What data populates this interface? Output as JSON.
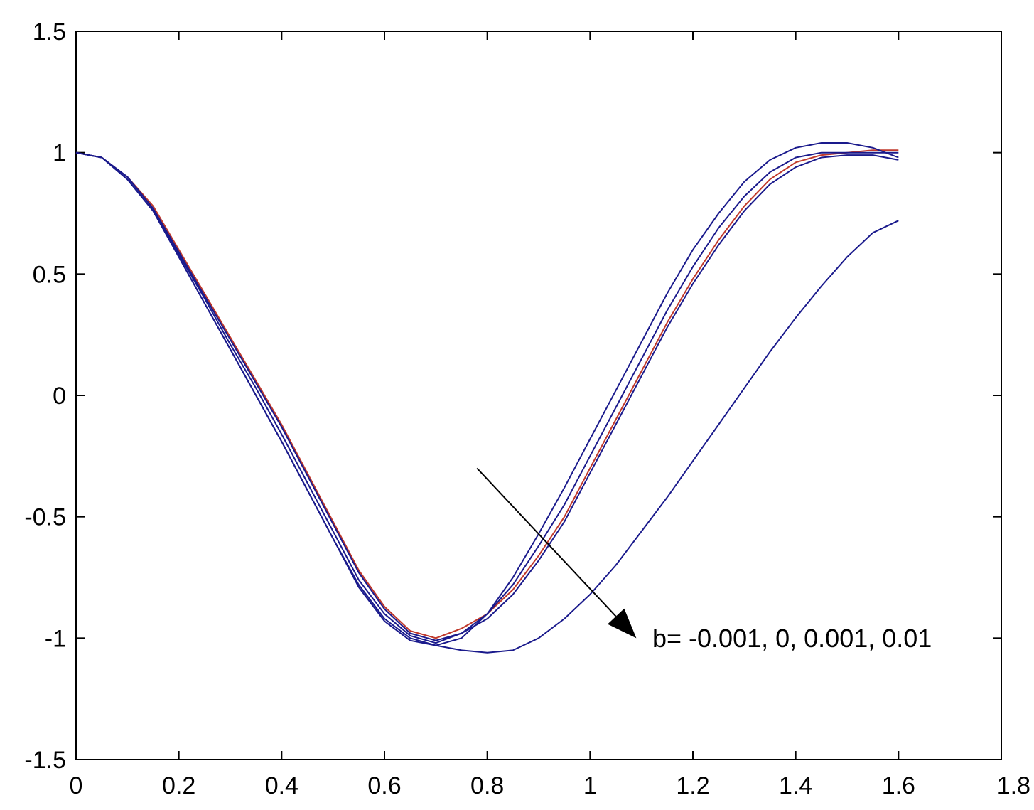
{
  "chart_data": {
    "type": "line",
    "title": "",
    "xlabel": "",
    "ylabel": "",
    "xlim": [
      0,
      1.8
    ],
    "ylim": [
      -1.5,
      1.5
    ],
    "x_ticks": [
      "0",
      "0.2",
      "0.4",
      "0.6",
      "0.8",
      "1",
      "1.2",
      "1.4",
      "1.6",
      "1.8"
    ],
    "y_ticks": [
      "1.5",
      "1",
      "0.5",
      "0",
      "-0.5",
      "-1",
      "-1.5"
    ],
    "grid": false,
    "legend": "none",
    "annotation": {
      "text": "b= -0.001, 0, 0.001, 0.01",
      "arrow_from": [
        0.78,
        -0.3
      ],
      "arrow_to": [
        1.09,
        -1.0
      ]
    },
    "series": [
      {
        "color": "#c0392b",
        "x": [
          0,
          0.05,
          0.1,
          0.15,
          0.2,
          0.25,
          0.3,
          0.35,
          0.4,
          0.45,
          0.5,
          0.55,
          0.6,
          0.65,
          0.7,
          0.75,
          0.8,
          0.85,
          0.9,
          0.95,
          1.0,
          1.05,
          1.1,
          1.15,
          1.2,
          1.25,
          1.3,
          1.35,
          1.4,
          1.45,
          1.5,
          1.55,
          1.6
        ],
        "y": [
          1.0,
          0.98,
          0.9,
          0.78,
          0.6,
          0.42,
          0.24,
          0.06,
          -0.12,
          -0.32,
          -0.52,
          -0.72,
          -0.87,
          -0.97,
          -1.0,
          -0.96,
          -0.9,
          -0.8,
          -0.66,
          -0.5,
          -0.3,
          -0.1,
          0.1,
          0.3,
          0.48,
          0.64,
          0.78,
          0.89,
          0.96,
          0.99,
          1.0,
          1.01,
          1.01
        ]
      },
      {
        "color": "#1a1a8c",
        "x": [
          0,
          0.05,
          0.1,
          0.15,
          0.2,
          0.25,
          0.3,
          0.35,
          0.4,
          0.45,
          0.5,
          0.55,
          0.6,
          0.65,
          0.7,
          0.75,
          0.8,
          0.85,
          0.9,
          0.95,
          1.0,
          1.05,
          1.1,
          1.15,
          1.2,
          1.25,
          1.3,
          1.35,
          1.4,
          1.45,
          1.5,
          1.55,
          1.6
        ],
        "y": [
          1.0,
          0.98,
          0.9,
          0.77,
          0.59,
          0.41,
          0.23,
          0.05,
          -0.13,
          -0.33,
          -0.53,
          -0.73,
          -0.88,
          -0.98,
          -1.01,
          -0.98,
          -0.92,
          -0.82,
          -0.68,
          -0.52,
          -0.32,
          -0.12,
          0.08,
          0.28,
          0.46,
          0.62,
          0.76,
          0.87,
          0.94,
          0.98,
          0.99,
          0.99,
          0.97
        ]
      },
      {
        "color": "#1a1a8c",
        "x": [
          0,
          0.05,
          0.1,
          0.15,
          0.2,
          0.25,
          0.3,
          0.35,
          0.4,
          0.45,
          0.5,
          0.55,
          0.6,
          0.65,
          0.7,
          0.75,
          0.8,
          0.85,
          0.9,
          0.95,
          1.0,
          1.05,
          1.1,
          1.15,
          1.2,
          1.25,
          1.3,
          1.35,
          1.4,
          1.45,
          1.5,
          1.55,
          1.6
        ],
        "y": [
          1.0,
          0.98,
          0.9,
          0.77,
          0.58,
          0.4,
          0.21,
          0.03,
          -0.16,
          -0.36,
          -0.56,
          -0.76,
          -0.9,
          -0.99,
          -1.02,
          -0.98,
          -0.9,
          -0.78,
          -0.62,
          -0.45,
          -0.25,
          -0.05,
          0.15,
          0.35,
          0.53,
          0.69,
          0.82,
          0.92,
          0.98,
          1.0,
          1.0,
          1.0,
          1.0
        ]
      },
      {
        "color": "#1a1a8c",
        "x": [
          0,
          0.05,
          0.1,
          0.15,
          0.2,
          0.25,
          0.3,
          0.35,
          0.4,
          0.45,
          0.5,
          0.55,
          0.6,
          0.65,
          0.7,
          0.75,
          0.8,
          0.85,
          0.9,
          0.95,
          1.0,
          1.05,
          1.1,
          1.15,
          1.2,
          1.25,
          1.3,
          1.35,
          1.4,
          1.45,
          1.5,
          1.55,
          1.6
        ],
        "y": [
          1.0,
          0.98,
          0.89,
          0.76,
          0.57,
          0.38,
          0.19,
          0.0,
          -0.19,
          -0.39,
          -0.59,
          -0.79,
          -0.93,
          -1.01,
          -1.03,
          -1.0,
          -0.9,
          -0.75,
          -0.57,
          -0.38,
          -0.18,
          0.02,
          0.22,
          0.42,
          0.6,
          0.75,
          0.88,
          0.97,
          1.02,
          1.04,
          1.04,
          1.02,
          0.98
        ]
      },
      {
        "color": "#1a1a8c",
        "x": [
          0,
          0.05,
          0.1,
          0.15,
          0.2,
          0.25,
          0.3,
          0.35,
          0.4,
          0.45,
          0.5,
          0.55,
          0.6,
          0.65,
          0.7,
          0.75,
          0.8,
          0.85,
          0.9,
          0.95,
          1.0,
          1.05,
          1.1,
          1.15,
          1.2,
          1.25,
          1.3,
          1.35,
          1.4,
          1.45,
          1.5,
          1.55,
          1.6
        ],
        "y": [
          1.0,
          0.98,
          0.89,
          0.76,
          0.57,
          0.38,
          0.19,
          0.0,
          -0.19,
          -0.39,
          -0.59,
          -0.78,
          -0.92,
          -1.0,
          -1.03,
          -1.05,
          -1.06,
          -1.05,
          -1.0,
          -0.92,
          -0.82,
          -0.7,
          -0.56,
          -0.42,
          -0.27,
          -0.12,
          0.03,
          0.18,
          0.32,
          0.45,
          0.57,
          0.67,
          0.72
        ]
      }
    ]
  }
}
